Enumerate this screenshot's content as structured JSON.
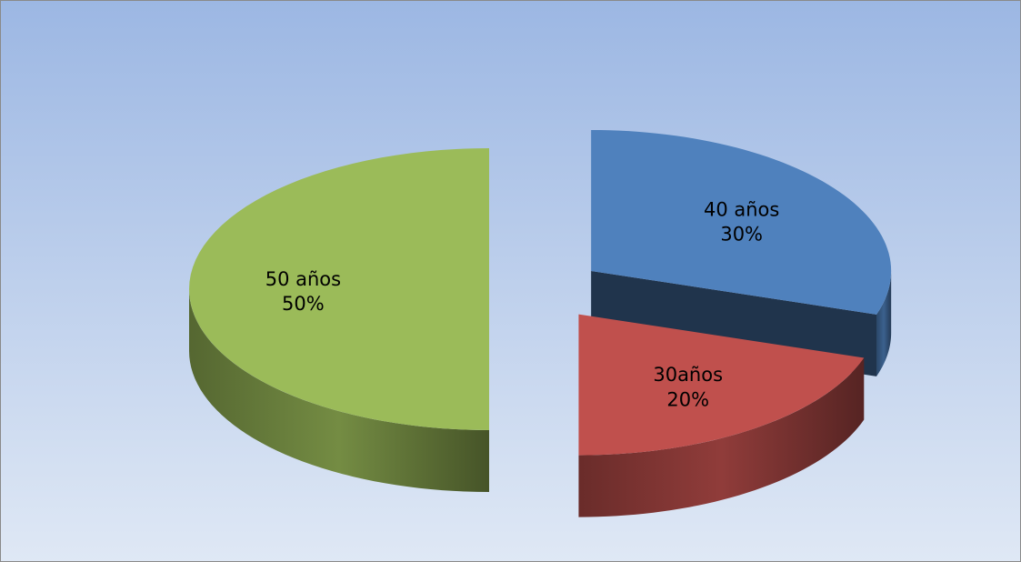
{
  "chart_data": {
    "type": "pie",
    "categories": [
      "40 años",
      "30años",
      "50 años"
    ],
    "values": [
      30,
      20,
      50
    ],
    "value_labels": [
      "30%",
      "20%",
      "50%"
    ],
    "colors": [
      "#4f81bd",
      "#c0504d",
      "#9bbb59"
    ],
    "start_angle": 0,
    "three_d": true
  }
}
